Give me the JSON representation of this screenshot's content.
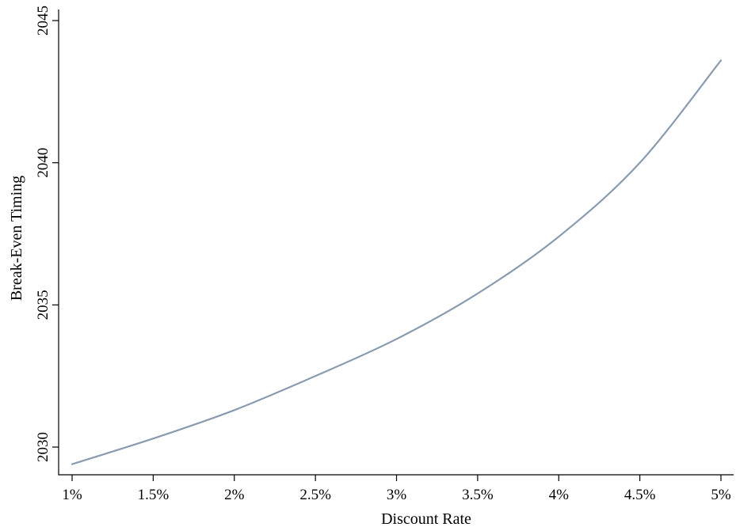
{
  "chart_data": {
    "type": "line",
    "xlabel": "Discount Rate",
    "ylabel": "Break-Even Timing",
    "xlim": [
      0.01,
      0.05
    ],
    "ylim": [
      2029.5,
      2045
    ],
    "x_ticks": [
      {
        "value": 0.01,
        "label": "1%"
      },
      {
        "value": 0.015,
        "label": "1.5%"
      },
      {
        "value": 0.02,
        "label": "2%"
      },
      {
        "value": 0.025,
        "label": "2.5%"
      },
      {
        "value": 0.03,
        "label": "3%"
      },
      {
        "value": 0.035,
        "label": "3.5%"
      },
      {
        "value": 0.04,
        "label": "4%"
      },
      {
        "value": 0.045,
        "label": "4.5%"
      },
      {
        "value": 0.05,
        "label": "5%"
      }
    ],
    "y_ticks": [
      {
        "value": 2030,
        "label": "2030"
      },
      {
        "value": 2035,
        "label": "2035"
      },
      {
        "value": 2040,
        "label": "2040"
      },
      {
        "value": 2045,
        "label": "2045"
      }
    ],
    "grid": false,
    "series": [
      {
        "color": "#8a9bb0",
        "x": [
          0.01,
          0.015,
          0.02,
          0.025,
          0.03,
          0.035,
          0.04,
          0.045,
          0.05
        ],
        "y": [
          2029.4,
          2030.3,
          2031.3,
          2032.5,
          2033.8,
          2035.4,
          2037.4,
          2040.0,
          2043.6
        ]
      }
    ]
  }
}
